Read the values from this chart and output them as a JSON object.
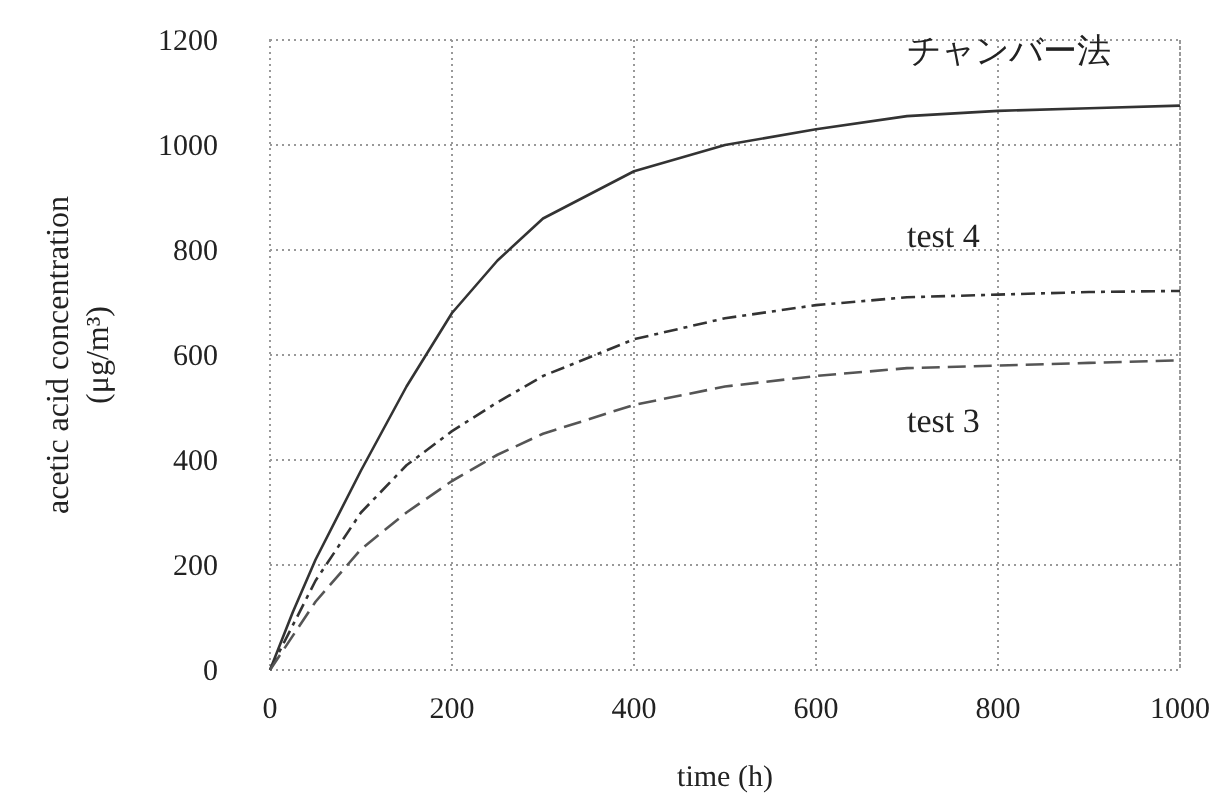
{
  "chart_data": {
    "type": "line",
    "xlabel": "time (h)",
    "ylabel": "acetic acid concentration (μg/m³)",
    "xlim": [
      0,
      1000
    ],
    "ylim": [
      0,
      1200
    ],
    "xticks": [
      0,
      200,
      400,
      600,
      800,
      1000
    ],
    "yticks": [
      0,
      200,
      400,
      600,
      800,
      1000,
      1200
    ],
    "grid": true,
    "series": [
      {
        "name": "チャンバー法",
        "color": "#333333",
        "line_style": "solid",
        "x": [
          0,
          25,
          50,
          100,
          150,
          200,
          250,
          300,
          400,
          500,
          600,
          700,
          800,
          900,
          1000
        ],
        "values": [
          0,
          110,
          210,
          380,
          540,
          680,
          780,
          860,
          950,
          1000,
          1030,
          1055,
          1065,
          1070,
          1075
        ]
      },
      {
        "name": "test 4",
        "color": "#333333",
        "line_style": "dotted",
        "x": [
          0,
          50,
          100,
          150,
          200,
          250,
          300,
          400,
          500,
          600,
          700,
          800,
          900,
          1000
        ],
        "values": [
          0,
          170,
          300,
          390,
          455,
          510,
          560,
          630,
          670,
          695,
          710,
          715,
          720,
          722
        ]
      },
      {
        "name": "test 3",
        "color": "#555555",
        "line_style": "dashed",
        "x": [
          0,
          50,
          100,
          150,
          200,
          250,
          300,
          400,
          500,
          600,
          700,
          800,
          900,
          1000
        ],
        "values": [
          0,
          130,
          230,
          300,
          360,
          410,
          450,
          505,
          540,
          560,
          575,
          580,
          585,
          590
        ]
      }
    ]
  }
}
